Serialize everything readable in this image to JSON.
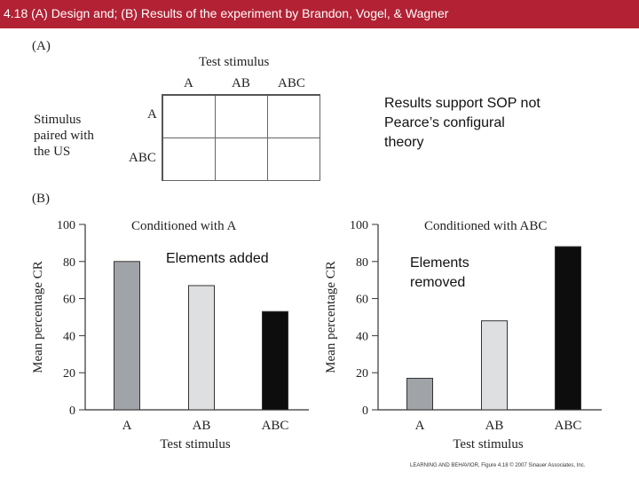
{
  "header": {
    "title": "4.18 (A) Design and; (B) Results of the experiment by Brandon, Vogel, & Wagner",
    "bg_color": "#b22234"
  },
  "panel_a": {
    "label": "(A)",
    "top_label": "Test stimulus",
    "columns": [
      "A",
      "AB",
      "ABC"
    ],
    "rows": [
      "A",
      "ABC"
    ],
    "side_label": [
      "Stimulus",
      "paired with",
      "the US"
    ]
  },
  "panel_b_label": "(B)",
  "notes": {
    "results": [
      "Results support SOP not",
      "Pearce’s configural",
      "theory"
    ],
    "added": "Elements added",
    "removed": [
      "Elements",
      "removed"
    ]
  },
  "credit": "LEARNING AND BEHAVIOR, Figure 4.18 © 2007 Sinauer Associates, Inc.",
  "chart_data": [
    {
      "type": "bar",
      "title": "Conditioned with A",
      "categories": [
        "A",
        "AB",
        "ABC"
      ],
      "values": [
        80,
        67,
        53
      ],
      "colors": [
        "#a0a3a8",
        "#dedfe1",
        "#0d0d0d"
      ],
      "xlabel": "Test stimulus",
      "ylabel": "Mean percentage CR",
      "ylim": [
        0,
        100
      ],
      "yticks": [
        0,
        20,
        40,
        60,
        80,
        100
      ]
    },
    {
      "type": "bar",
      "title": "Conditioned with ABC",
      "categories": [
        "A",
        "AB",
        "ABC"
      ],
      "values": [
        17,
        48,
        88
      ],
      "colors": [
        "#a0a3a8",
        "#dedfe1",
        "#0d0d0d"
      ],
      "xlabel": "Test stimulus",
      "ylabel": "Mean percentage CR",
      "ylim": [
        0,
        100
      ],
      "yticks": [
        0,
        20,
        40,
        60,
        80,
        100
      ]
    }
  ]
}
